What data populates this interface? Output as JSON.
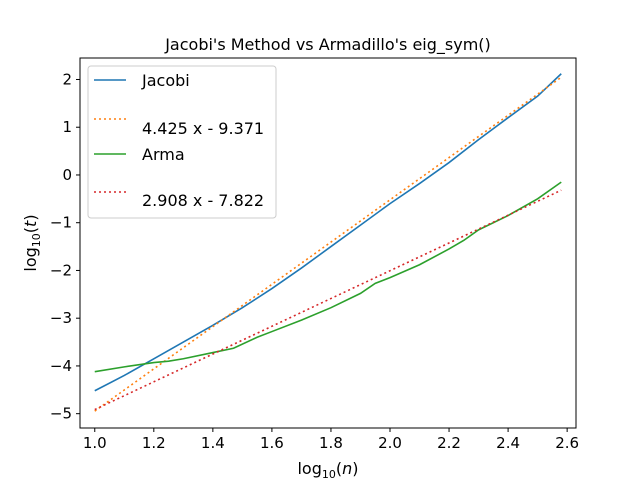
{
  "chart_data": {
    "type": "line",
    "title": "Jacobi's Method vs Armadillo's eig_sym()",
    "xlabel": {
      "pre": "log",
      "sub": "10",
      "post": "(",
      "var": "n",
      "end": ")"
    },
    "ylabel": {
      "pre": "log",
      "sub": "10",
      "post": "(",
      "var": "t",
      "end": ")"
    },
    "xlim": [
      0.95,
      2.63
    ],
    "ylim": [
      -5.3,
      2.45
    ],
    "xticks": [
      1.0,
      1.2,
      1.4,
      1.6,
      1.8,
      2.0,
      2.2,
      2.4,
      2.6
    ],
    "xtick_labels": [
      "1.0",
      "1.2",
      "1.4",
      "1.6",
      "1.8",
      "2.0",
      "2.2",
      "2.4",
      "2.6"
    ],
    "yticks": [
      -5,
      -4,
      -3,
      -2,
      -1,
      0,
      1,
      2
    ],
    "ytick_labels": [
      "−5",
      "−4",
      "−3",
      "−2",
      "−1",
      "0",
      "1",
      "2"
    ],
    "grid": false,
    "legend_position": "top-left",
    "series": [
      {
        "name": "Jacobi",
        "color": "#1f77b4",
        "style": "solid",
        "x": [
          1.0,
          1.1,
          1.2,
          1.3,
          1.4,
          1.5,
          1.6,
          1.7,
          1.8,
          1.9,
          2.0,
          2.1,
          2.2,
          2.3,
          2.4,
          2.5,
          2.58
        ],
        "y": [
          -4.52,
          -4.2,
          -3.85,
          -3.5,
          -3.15,
          -2.78,
          -2.38,
          -1.95,
          -1.5,
          -1.05,
          -0.6,
          -0.18,
          0.26,
          0.74,
          1.2,
          1.65,
          2.12
        ]
      },
      {
        "name": "4.425 x - 9.371",
        "color": "#ff7f0e",
        "style": "dotted",
        "x": [
          1.0,
          2.58
        ],
        "y": [
          -4.946,
          2.046
        ]
      },
      {
        "name": "Arma",
        "color": "#2ca02c",
        "style": "solid",
        "x": [
          1.0,
          1.1,
          1.2,
          1.25,
          1.3,
          1.4,
          1.47,
          1.55,
          1.6,
          1.7,
          1.8,
          1.9,
          1.95,
          2.0,
          2.1,
          2.2,
          2.25,
          2.3,
          2.4,
          2.5,
          2.58
        ],
        "y": [
          -4.12,
          -4.02,
          -3.93,
          -3.9,
          -3.85,
          -3.72,
          -3.63,
          -3.4,
          -3.28,
          -3.04,
          -2.78,
          -2.48,
          -2.27,
          -2.15,
          -1.88,
          -1.55,
          -1.37,
          -1.15,
          -0.85,
          -0.5,
          -0.15
        ]
      },
      {
        "name": "2.908 x - 7.822",
        "color": "#d62728",
        "style": "dotted",
        "x": [
          1.0,
          2.58
        ],
        "y": [
          -4.914,
          -0.319
        ]
      }
    ]
  }
}
